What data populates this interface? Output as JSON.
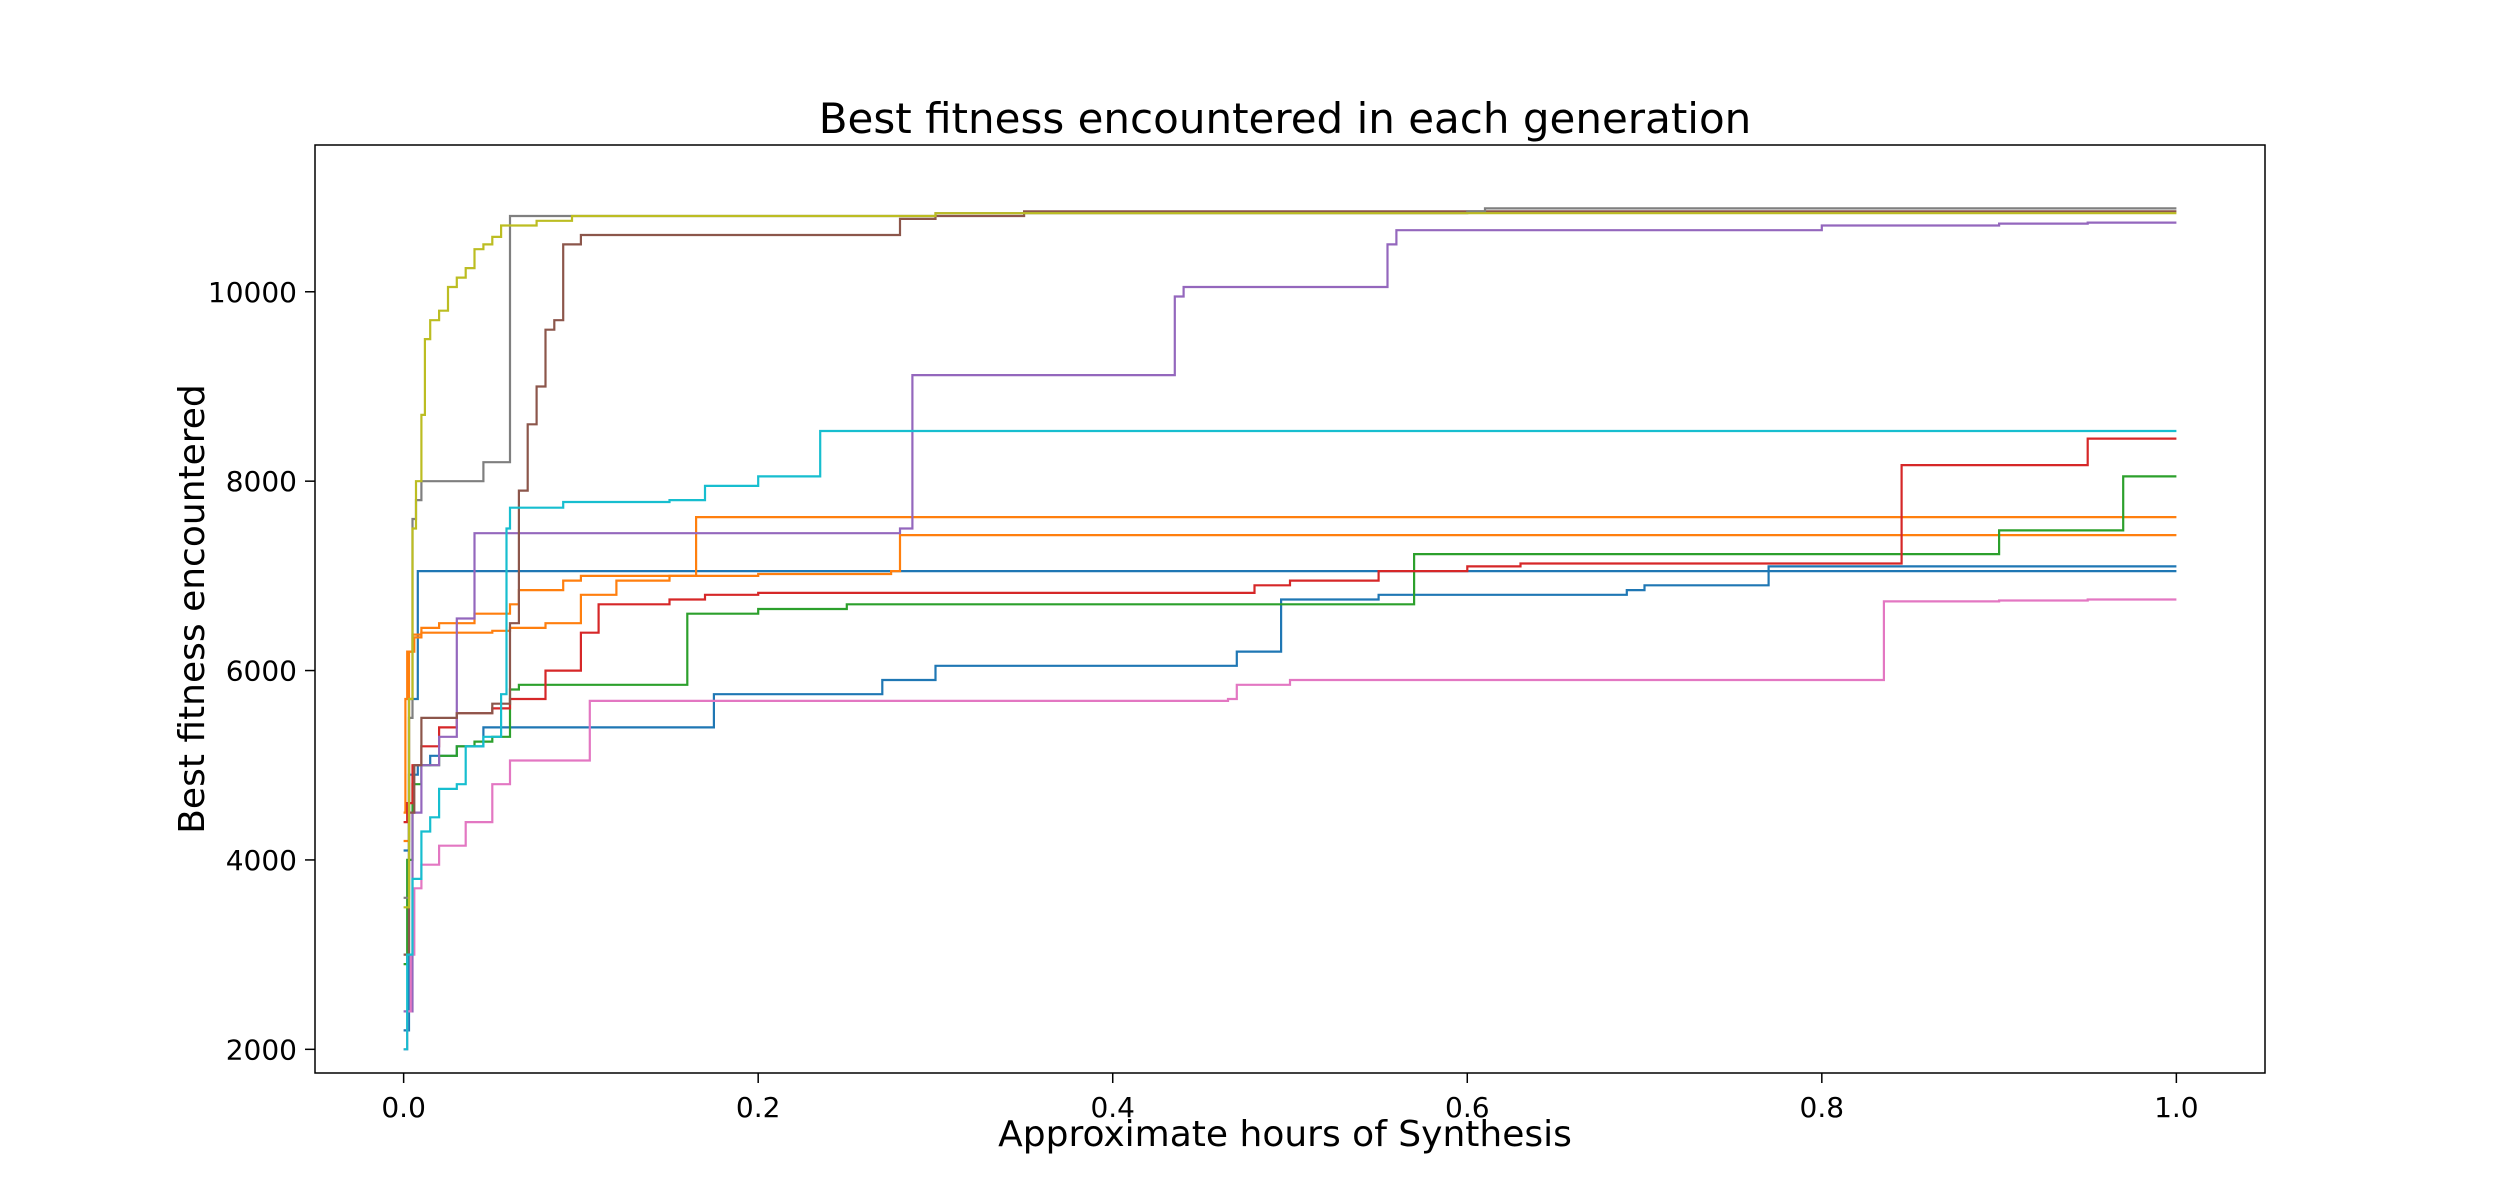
{
  "chart_data": {
    "type": "line",
    "line_style": "step",
    "title": "Best fitness encountered in each generation",
    "xlabel": "Approximate hours of Synthesis",
    "ylabel": "Best fitness encountered",
    "xlim": [
      -0.05,
      1.05
    ],
    "ylim": [
      1750,
      11550
    ],
    "xticks": [
      0.0,
      0.2,
      0.4,
      0.6,
      0.8,
      1.0
    ],
    "xtick_labels": [
      "0.0",
      "0.2",
      "0.4",
      "0.6",
      "0.8",
      "1.0"
    ],
    "yticks": [
      2000,
      4000,
      6000,
      8000,
      10000
    ],
    "ytick_labels": [
      "2000",
      "4000",
      "6000",
      "8000",
      "10000"
    ],
    "grid": false,
    "legend": "none",
    "series": [
      {
        "color": "#1f77b4",
        "x": [
          0.0,
          0.003,
          0.008,
          0.015,
          0.03,
          0.045,
          0.06,
          0.1,
          0.13,
          0.175,
          0.2,
          0.27,
          0.3,
          0.35,
          0.45,
          0.47,
          0.495,
          0.55,
          0.6,
          0.69,
          0.7,
          0.77,
          1.0
        ],
        "values": [
          2200,
          4900,
          5000,
          5100,
          5200,
          5400,
          5400,
          5400,
          5400,
          5750,
          5750,
          5900,
          6050,
          6050,
          6050,
          6200,
          6750,
          6800,
          6800,
          6850,
          6900,
          7050,
          7050
        ]
      },
      {
        "color": "#1f77b4",
        "x": [
          0.0,
          0.003,
          0.008,
          0.1,
          0.3,
          0.6,
          0.77,
          1.0
        ],
        "values": [
          4100,
          5700,
          7050,
          7050,
          7050,
          7050,
          7100,
          7100
        ]
      },
      {
        "color": "#ff7f0e",
        "x": [
          0.0,
          0.001,
          0.002,
          0.005,
          0.01,
          0.02,
          0.04,
          0.06,
          0.065,
          0.09,
          0.1,
          0.12,
          0.16,
          0.165,
          0.3,
          0.6,
          1.0
        ],
        "values": [
          4500,
          5700,
          6200,
          6380,
          6450,
          6500,
          6600,
          6700,
          6850,
          6950,
          7000,
          7000,
          7000,
          7620,
          7620,
          7620,
          7620
        ]
      },
      {
        "color": "#ff7f0e",
        "x": [
          0.0,
          0.003,
          0.006,
          0.01,
          0.03,
          0.05,
          0.06,
          0.08,
          0.1,
          0.12,
          0.15,
          0.2,
          0.275,
          0.28,
          0.5,
          1.0
        ],
        "values": [
          4200,
          6200,
          6350,
          6400,
          6400,
          6420,
          6450,
          6500,
          6800,
          6950,
          7000,
          7020,
          7050,
          7430,
          7430,
          7430
        ]
      },
      {
        "color": "#2ca02c",
        "x": [
          0.0,
          0.002,
          0.005,
          0.01,
          0.02,
          0.03,
          0.04,
          0.05,
          0.06,
          0.065,
          0.1,
          0.16,
          0.2,
          0.25,
          0.4,
          0.5,
          0.55,
          0.57,
          0.65,
          0.9,
          0.95,
          0.97,
          1.0
        ],
        "values": [
          2900,
          4000,
          4800,
          5000,
          5100,
          5200,
          5250,
          5300,
          5800,
          5850,
          5850,
          6600,
          6650,
          6700,
          6700,
          6700,
          6700,
          7230,
          7230,
          7480,
          7480,
          8050,
          8050
        ]
      },
      {
        "color": "#d62728",
        "x": [
          0.0,
          0.002,
          0.005,
          0.01,
          0.02,
          0.03,
          0.05,
          0.06,
          0.08,
          0.1,
          0.11,
          0.15,
          0.17,
          0.2,
          0.3,
          0.45,
          0.48,
          0.5,
          0.55,
          0.6,
          0.63,
          0.75,
          0.845,
          0.95,
          1.0
        ],
        "values": [
          4400,
          4600,
          5000,
          5200,
          5400,
          5550,
          5600,
          5700,
          6000,
          6400,
          6700,
          6750,
          6800,
          6820,
          6820,
          6820,
          6900,
          6950,
          7050,
          7100,
          7130,
          7130,
          8170,
          8450,
          8450
        ]
      },
      {
        "color": "#9467bd",
        "x": [
          0.0,
          0.005,
          0.01,
          0.02,
          0.03,
          0.04,
          0.065,
          0.2,
          0.28,
          0.287,
          0.43,
          0.435,
          0.44,
          0.5,
          0.55,
          0.555,
          0.56,
          0.8,
          0.9,
          0.95,
          1.0
        ],
        "values": [
          2400,
          4500,
          5000,
          5300,
          6550,
          7450,
          7450,
          7450,
          7500,
          9120,
          9120,
          9950,
          10050,
          10050,
          10050,
          10500,
          10650,
          10700,
          10720,
          10730,
          10730
        ]
      },
      {
        "color": "#8c564b",
        "x": [
          0.0,
          0.003,
          0.006,
          0.01,
          0.03,
          0.05,
          0.06,
          0.065,
          0.07,
          0.075,
          0.08,
          0.085,
          0.09,
          0.1,
          0.28,
          0.3,
          0.35,
          0.6,
          1.0
        ],
        "values": [
          3000,
          4500,
          5000,
          5500,
          5550,
          5650,
          6500,
          7900,
          8600,
          9000,
          9600,
          9700,
          10500,
          10600,
          10770,
          10800,
          10850,
          10850,
          10850
        ]
      },
      {
        "color": "#e377c2",
        "x": [
          0.0,
          0.002,
          0.004,
          0.006,
          0.01,
          0.02,
          0.035,
          0.05,
          0.06,
          0.08,
          0.105,
          0.3,
          0.465,
          0.47,
          0.5,
          0.55,
          0.8,
          0.83,
          0.835,
          0.9,
          0.95,
          1.0
        ],
        "values": [
          2000,
          2400,
          3000,
          3700,
          3950,
          4150,
          4400,
          4800,
          5050,
          5050,
          5680,
          5680,
          5700,
          5850,
          5900,
          5900,
          5900,
          5900,
          6730,
          6740,
          6750,
          6750
        ]
      },
      {
        "color": "#7f7f7f",
        "x": [
          0.0,
          0.003,
          0.005,
          0.007,
          0.01,
          0.02,
          0.04,
          0.045,
          0.055,
          0.06,
          0.1,
          0.3,
          0.6,
          0.61,
          1.0
        ],
        "values": [
          3600,
          5500,
          7600,
          7800,
          8000,
          8000,
          8000,
          8200,
          8200,
          10800,
          10800,
          10830,
          10850,
          10880,
          10880
        ]
      },
      {
        "color": "#bcbd22",
        "x": [
          0.0,
          0.003,
          0.005,
          0.007,
          0.01,
          0.012,
          0.015,
          0.02,
          0.025,
          0.03,
          0.035,
          0.04,
          0.045,
          0.05,
          0.055,
          0.06,
          0.075,
          0.095,
          0.3,
          1.0
        ],
        "values": [
          3500,
          5700,
          7500,
          8000,
          8700,
          9500,
          9700,
          9800,
          10050,
          10150,
          10250,
          10450,
          10500,
          10580,
          10700,
          10700,
          10750,
          10800,
          10830,
          10830
        ]
      },
      {
        "color": "#17becf",
        "x": [
          0.0,
          0.002,
          0.005,
          0.01,
          0.015,
          0.02,
          0.03,
          0.035,
          0.045,
          0.055,
          0.058,
          0.06,
          0.09,
          0.15,
          0.17,
          0.2,
          0.235,
          0.3,
          0.6,
          1.0
        ],
        "values": [
          2000,
          3000,
          3800,
          4300,
          4450,
          4750,
          4800,
          5200,
          5300,
          5750,
          7500,
          7720,
          7780,
          7800,
          7950,
          8050,
          8530,
          8530,
          8530,
          8530
        ]
      }
    ]
  }
}
